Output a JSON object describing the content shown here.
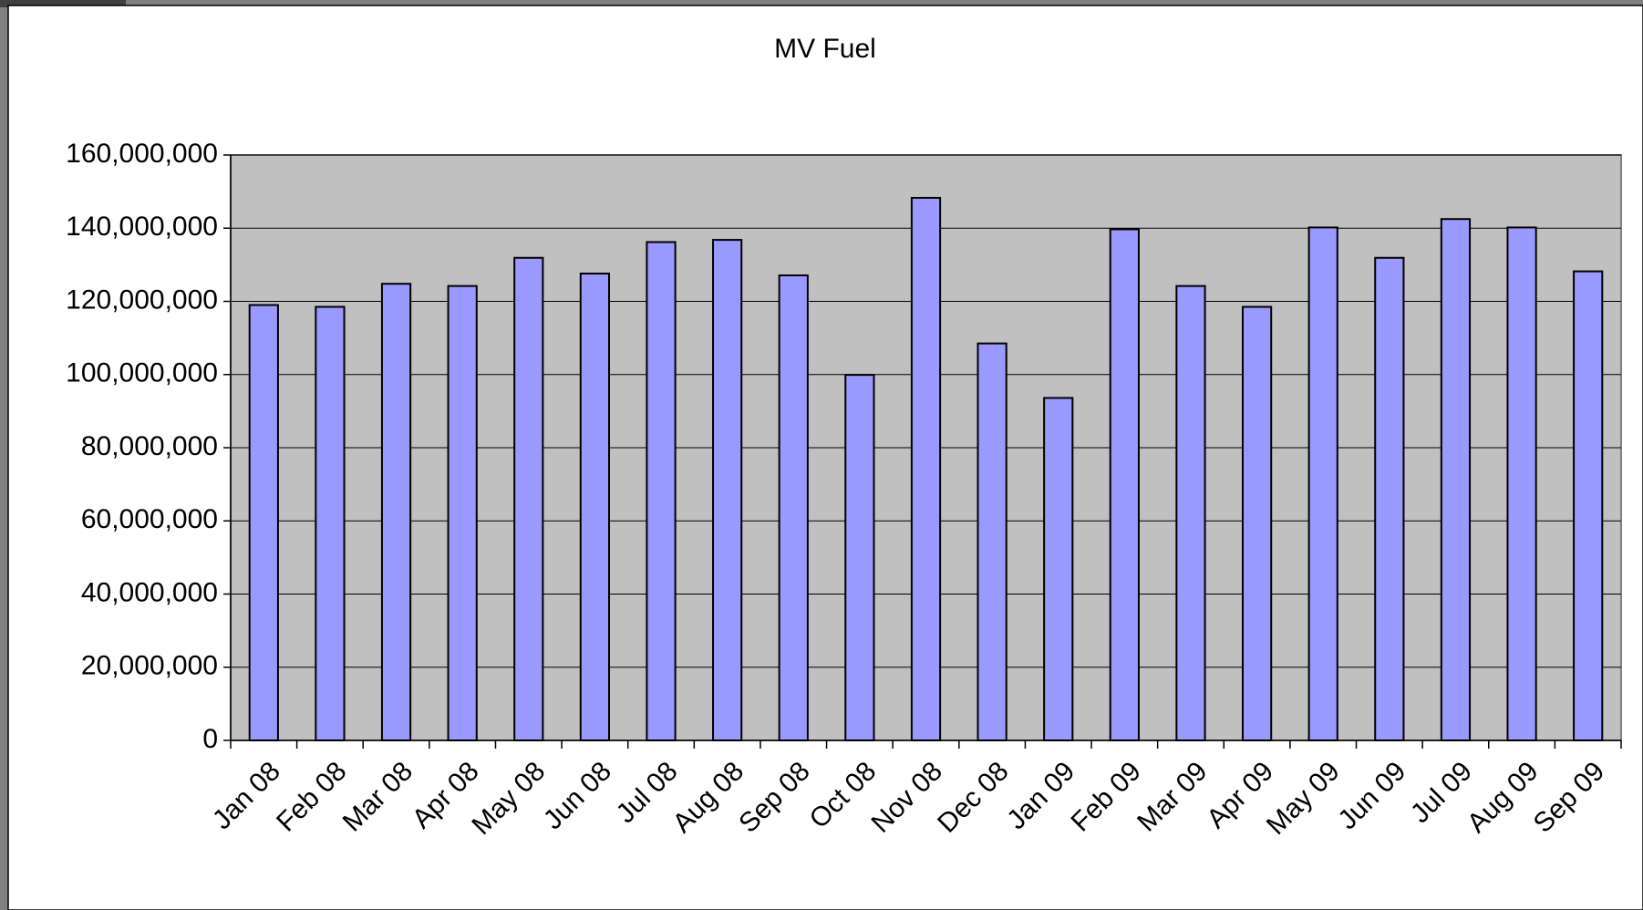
{
  "chart_data": {
    "type": "bar",
    "title": "MV Fuel",
    "categories": [
      "Jan 08",
      "Feb 08",
      "Mar 08",
      "Apr 08",
      "May 08",
      "Jun 08",
      "Jul 08",
      "Aug 08",
      "Sep 08",
      "Oct 08",
      "Nov 08",
      "Dec 08",
      "Jan 09",
      "Feb 09",
      "Mar 09",
      "Apr 09",
      "May 09",
      "Jun 09",
      "Jul 09",
      "Aug 09",
      "Sep 09"
    ],
    "values": [
      119000000,
      118500000,
      124800000,
      124200000,
      131900000,
      127600000,
      136200000,
      136800000,
      127100000,
      99900000,
      148300000,
      108500000,
      93600000,
      139700000,
      124200000,
      118500000,
      140200000,
      131900000,
      142500000,
      140200000,
      128200000
    ],
    "color": "#9999ff",
    "ylim": [
      0,
      160000000
    ],
    "yticks": [
      0,
      {
        "value": 20000000,
        "label": "20,000,000"
      },
      {
        "value": 40000000,
        "label": "40,000,000"
      },
      {
        "value": 60000000,
        "label": "60,000,000"
      },
      {
        "value": 80000000,
        "label": "80,000,000"
      },
      {
        "value": 100000000,
        "label": "100,000,000"
      },
      {
        "value": 120000000,
        "label": "120,000,000"
      },
      {
        "value": 140000000,
        "label": "140,000,000"
      },
      {
        "value": 160000000,
        "label": "160,000,000"
      }
    ],
    "grid": true
  }
}
